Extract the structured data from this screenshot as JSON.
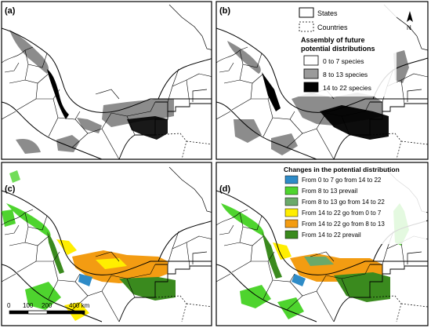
{
  "panels": [
    {
      "id": "a",
      "label": "(a)"
    },
    {
      "id": "b",
      "label": "(b)"
    },
    {
      "id": "c",
      "label": "(c)"
    },
    {
      "id": "d",
      "label": "(d)"
    }
  ],
  "legend_top": {
    "states_label": "States",
    "countries_label": "Countries",
    "title_line1": "Assembly of future",
    "title_line2": "potential distributions",
    "items": [
      {
        "label": "0 to 7 species",
        "color": "#ffffff"
      },
      {
        "label": "8 to 13 species",
        "color": "#9a9a9a"
      },
      {
        "label": "14 to 22 species",
        "color": "#000000"
      }
    ]
  },
  "legend_bottom": {
    "title": "Changes in the potential distribution",
    "items": [
      {
        "label": "From 0 to 7 go from 14 to 22",
        "color": "#2e8bc7"
      },
      {
        "label": "From 8 to 13 prevail",
        "color": "#4ed42e"
      },
      {
        "label": "From 8 to 13 go from 14 to 22",
        "color": "#6aa96a"
      },
      {
        "label": "From 14 to 22 go from 0 to 7",
        "color": "#ffee00"
      },
      {
        "label": "From 14 to 22 go from 8 to 13",
        "color": "#f39c12"
      },
      {
        "label": "From 14 to 22 prevail",
        "color": "#3a8a1e"
      }
    ]
  },
  "north_arrow": {
    "label": "N"
  },
  "scale_bar": {
    "ticks": [
      "0",
      "100",
      "200",
      "400 km"
    ]
  },
  "colors": {
    "grey": "#8c8c8c",
    "black": "#000000",
    "orange": "#f39c12",
    "yellow": "#ffee00",
    "green": "#3a8a1e",
    "light_green": "#4ed42e",
    "blue": "#2e8bc7"
  }
}
